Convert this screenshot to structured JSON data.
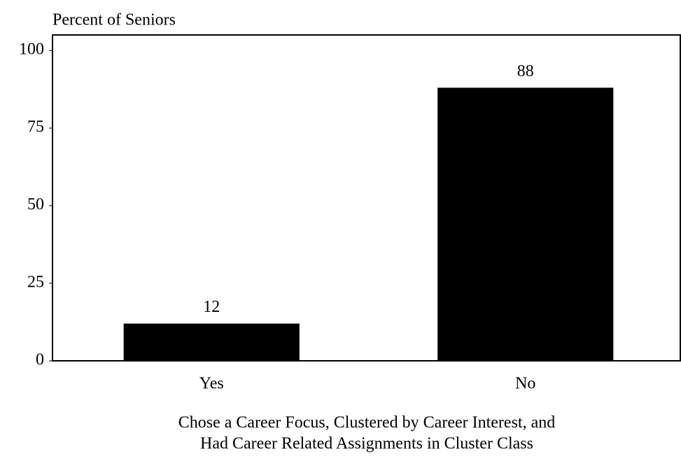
{
  "chart_data": {
    "type": "bar",
    "ylabel": "Percent of Seniors",
    "xlabel": [
      "Chose a Career Focus, Clustered by Career Interest, and",
      "Had Career Related Assignments in Cluster Class"
    ],
    "categories": [
      "Yes",
      "No"
    ],
    "values": [
      12,
      88
    ],
    "color": "#000000",
    "ylim": [
      0,
      105
    ],
    "yticks": [
      0,
      25,
      50,
      75,
      100
    ],
    "grid": false
  }
}
